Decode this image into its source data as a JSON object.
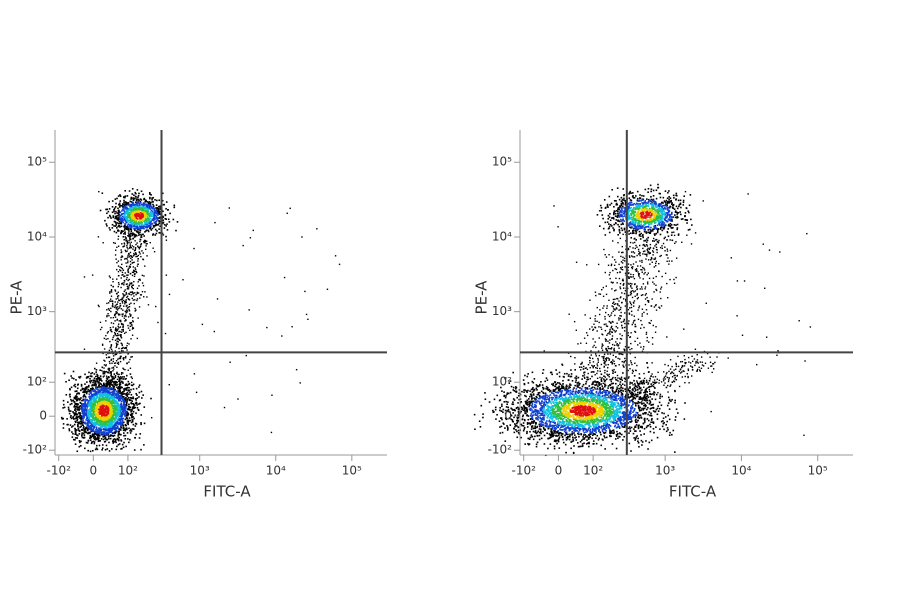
{
  "chart_data": [
    {
      "type": "scatter",
      "xlabel": "FITC-A",
      "ylabel": "PE-A",
      "xscale": "biexponential",
      "yscale": "biexponential",
      "xlim": [
        -115,
        290000
      ],
      "ylim": [
        -120,
        270000
      ],
      "xticks": [
        {
          "value": -100,
          "label": "-10²"
        },
        0,
        {
          "value": 100,
          "label": "10²"
        },
        {
          "value": 1000,
          "label": "10³"
        },
        {
          "value": 10000,
          "label": "10⁴"
        },
        {
          "value": 100000,
          "label": "10⁵"
        }
      ],
      "yticks": [
        {
          "value": -100,
          "label": "-10²"
        },
        0,
        {
          "value": 100,
          "label": "10²"
        },
        {
          "value": 1000,
          "label": "10³"
        },
        {
          "value": 10000,
          "label": "10⁴"
        },
        {
          "value": 100000,
          "label": "10⁵"
        }
      ],
      "gate_x": 310,
      "gate_y": 280
    },
    {
      "type": "scatter",
      "xlabel": "FITC-A",
      "ylabel": "PE-A",
      "xscale": "biexponential",
      "yscale": "biexponential",
      "xlim": [
        -115,
        290000
      ],
      "ylim": [
        -120,
        270000
      ],
      "xticks": [
        {
          "value": -100,
          "label": "-10²"
        },
        0,
        {
          "value": 100,
          "label": "10²"
        },
        {
          "value": 1000,
          "label": "10³"
        },
        {
          "value": 10000,
          "label": "10⁴"
        },
        {
          "value": 100000,
          "label": "10⁵"
        }
      ],
      "yticks": [
        {
          "value": -100,
          "label": "-10²"
        },
        0,
        {
          "value": 100,
          "label": "10²"
        },
        {
          "value": 1000,
          "label": "10³"
        },
        {
          "value": 10000,
          "label": "10⁴"
        },
        {
          "value": 100000,
          "label": "10⁵"
        }
      ],
      "gate_x": 310,
      "gate_y": 280
    }
  ]
}
